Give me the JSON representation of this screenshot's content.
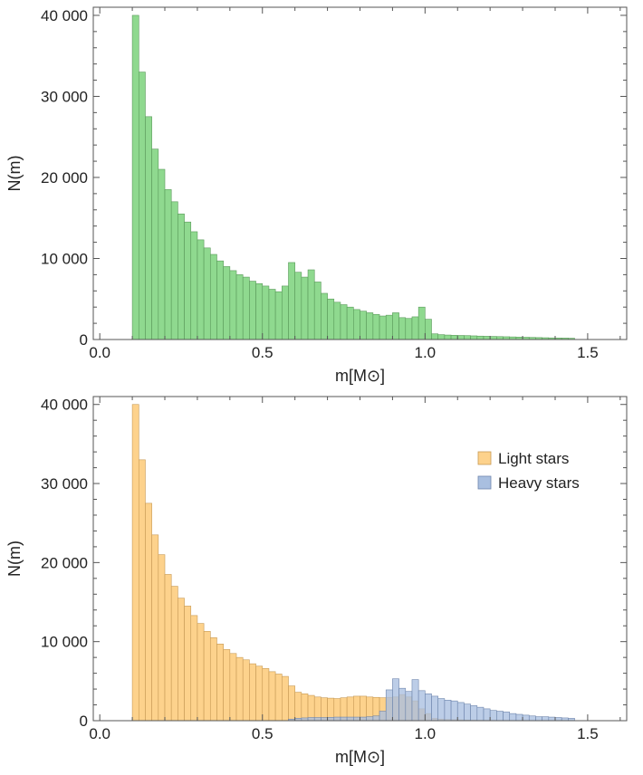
{
  "chart_data": [
    {
      "type": "bar",
      "xlabel": "m[M⊙]",
      "ylabel": "N(m)",
      "xlim": [
        -0.02,
        1.62
      ],
      "ylim": [
        0,
        41000
      ],
      "xticks": [
        0.0,
        0.5,
        1.0,
        1.5
      ],
      "xtick_labels": [
        "0.0",
        "0.5",
        "1.0",
        "1.5"
      ],
      "yticks": [
        0,
        10000,
        20000,
        30000,
        40000
      ],
      "ytick_labels": [
        "0",
        "10 000",
        "20 000",
        "30 000",
        "40 000"
      ],
      "bin_start": 0.1,
      "bin_width": 0.02,
      "series": [
        {
          "name": "",
          "color": "#8fd98f",
          "stroke": "#5a9a5a",
          "values": [
            40000,
            33000,
            27500,
            23500,
            21000,
            18500,
            17000,
            15500,
            14500,
            13300,
            12300,
            11300,
            10500,
            9700,
            9000,
            8500,
            8000,
            7700,
            7200,
            6900,
            6600,
            6200,
            5900,
            6600,
            9500,
            8300,
            7700,
            8600,
            7100,
            5700,
            5000,
            4600,
            4300,
            4000,
            3700,
            3500,
            3300,
            3100,
            2900,
            3000,
            3300,
            2700,
            2600,
            2800,
            4000,
            2500,
            700,
            600,
            550,
            520,
            500,
            480,
            450,
            420,
            400,
            380,
            360,
            340,
            320,
            300,
            280,
            260,
            240,
            220,
            200,
            190,
            180,
            160
          ]
        }
      ]
    },
    {
      "type": "bar",
      "xlabel": "m[M⊙]",
      "ylabel": "N(m)",
      "xlim": [
        -0.02,
        1.62
      ],
      "ylim": [
        0,
        41000
      ],
      "xticks": [
        0.0,
        0.5,
        1.0,
        1.5
      ],
      "xtick_labels": [
        "0.0",
        "0.5",
        "1.0",
        "1.5"
      ],
      "yticks": [
        0,
        10000,
        20000,
        30000,
        40000
      ],
      "ytick_labels": [
        "0",
        "10 000",
        "20 000",
        "30 000",
        "40 000"
      ],
      "bin_start": 0.1,
      "bin_width": 0.02,
      "legend": "top-right",
      "series": [
        {
          "name": "Light stars",
          "color": "#fdd28c",
          "stroke": "#c79a55",
          "values": [
            40000,
            33000,
            27500,
            23500,
            21000,
            18500,
            17000,
            15500,
            14500,
            13300,
            12300,
            11300,
            10500,
            9700,
            9000,
            8500,
            8000,
            7700,
            7200,
            6900,
            6600,
            6200,
            5900,
            5600,
            4400,
            3600,
            3400,
            3200,
            3000,
            2900,
            2850,
            2800,
            2900,
            3000,
            3100,
            3100,
            3000,
            2950,
            2900,
            2950,
            3000,
            3300,
            3000,
            2500,
            1500,
            900,
            300,
            200,
            150,
            120,
            100,
            80,
            60,
            50,
            40,
            30,
            20,
            15,
            10,
            8,
            6,
            5,
            4,
            3,
            2,
            2,
            1,
            1
          ]
        },
        {
          "name": "Heavy stars",
          "color": "#a9bfe0",
          "stroke": "#6f86ad",
          "values": [
            0,
            0,
            0,
            0,
            0,
            0,
            0,
            0,
            0,
            0,
            0,
            0,
            0,
            0,
            0,
            0,
            0,
            0,
            0,
            0,
            0,
            0,
            0,
            0,
            200,
            300,
            350,
            400,
            400,
            400,
            420,
            450,
            450,
            450,
            450,
            450,
            500,
            600,
            1200,
            3900,
            5300,
            4100,
            3700,
            5200,
            3800,
            3400,
            3100,
            2800,
            2600,
            2500,
            2300,
            2100,
            1900,
            1700,
            1500,
            1300,
            1200,
            1100,
            900,
            800,
            700,
            600,
            500,
            500,
            450,
            400,
            350,
            300
          ]
        }
      ]
    }
  ]
}
